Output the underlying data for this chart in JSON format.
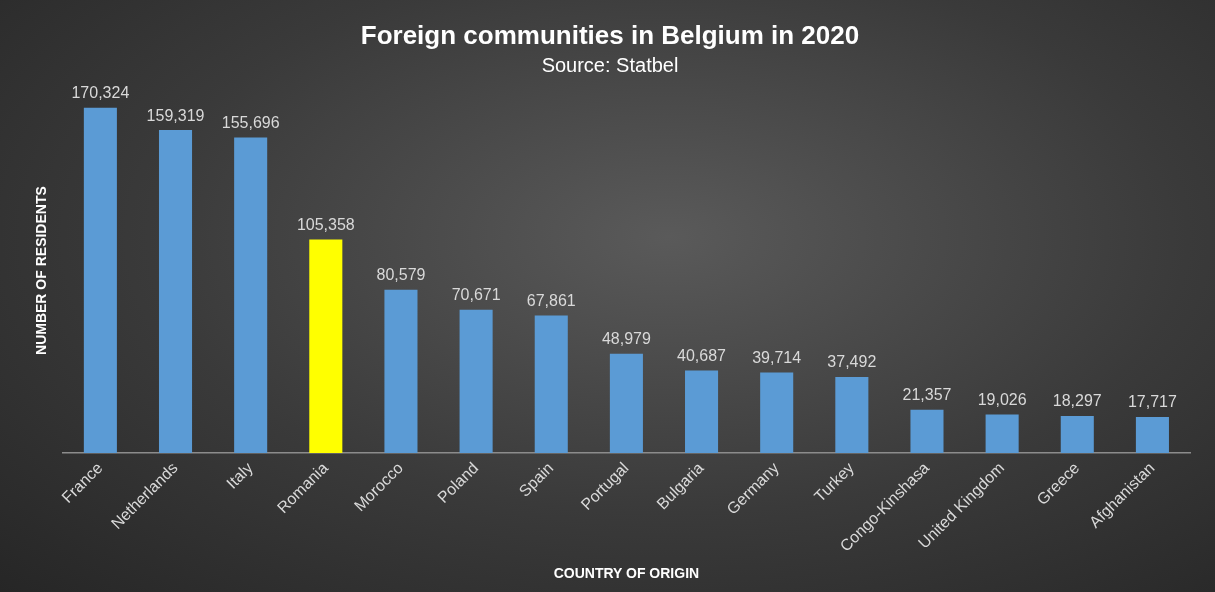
{
  "chart_data": {
    "type": "bar",
    "title": "Foreign communities in Belgium in 2020",
    "subtitle": "Source: Statbel",
    "xlabel": "COUNTRY OF ORIGIN",
    "ylabel": "NUMBER OF RESIDENTS",
    "categories": [
      "France",
      "Netherlands",
      "Italy",
      "Romania",
      "Morocco",
      "Poland",
      "Spain",
      "Portugal",
      "Bulgaria",
      "Germany",
      "Turkey",
      "Congo-Kinshasa",
      "United Kingdom",
      "Greece",
      "Afghanistan"
    ],
    "values": [
      170324,
      159319,
      155696,
      105358,
      80579,
      70671,
      67861,
      48979,
      40687,
      39714,
      37492,
      21357,
      19026,
      18297,
      17717
    ],
    "value_labels": [
      "170,324",
      "159,319",
      "155,696",
      "105,358",
      "80,579",
      "70,671",
      "67,861",
      "48,979",
      "40,687",
      "39,714",
      "37,492",
      "21,357",
      "19,026",
      "18,297",
      "17,717"
    ],
    "colors": [
      "#5b9bd5",
      "#5b9bd5",
      "#5b9bd5",
      "#ffff00",
      "#5b9bd5",
      "#5b9bd5",
      "#5b9bd5",
      "#5b9bd5",
      "#5b9bd5",
      "#5b9bd5",
      "#5b9bd5",
      "#5b9bd5",
      "#5b9bd5",
      "#5b9bd5",
      "#5b9bd5"
    ],
    "grid": false,
    "legend": false
  }
}
